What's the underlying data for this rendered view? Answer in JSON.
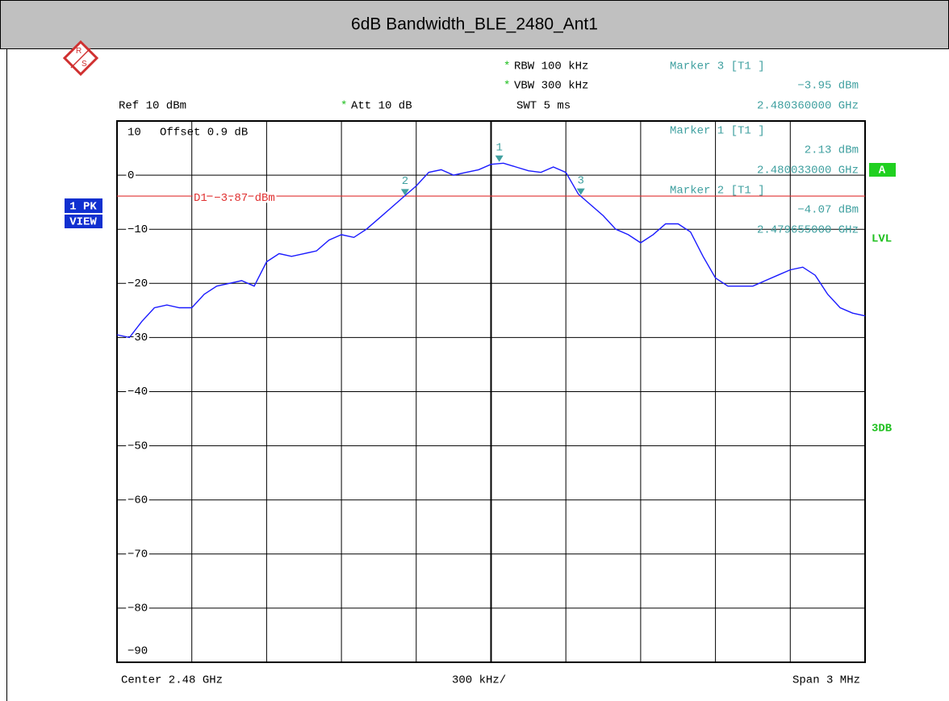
{
  "header": {
    "title": "6dB Bandwidth_BLE_2480_Ant1"
  },
  "settings": {
    "star": "*",
    "rbw": "RBW 100 kHz",
    "vbw": "VBW 300 kHz",
    "swt": "SWT 5 ms",
    "ref": "Ref 10 dBm",
    "att": "Att 10 dB"
  },
  "side": {
    "trace_mode": [
      "1 PK",
      "VIEW"
    ],
    "trace": "A",
    "lvl": "LVL",
    "db3": "3DB"
  },
  "footer": {
    "center": "Center 2.48 GHz",
    "per_div": "300 kHz/",
    "span": "Span 3 MHz"
  },
  "chart_data": {
    "type": "line",
    "offset_label": "Offset 0.9 dB",
    "xlim": [
      2.4785,
      2.4815
    ],
    "ylim": [
      -90,
      10
    ],
    "yticks": [
      10,
      0,
      {
        "value": -10,
        "label": "−10"
      },
      {
        "value": -20,
        "label": "−20"
      },
      {
        "value": -30,
        "label": "−30"
      },
      {
        "value": -40,
        "label": "−40"
      },
      {
        "value": -50,
        "label": "−50"
      },
      {
        "value": -60,
        "label": "−60"
      },
      {
        "value": -70,
        "label": "−70"
      },
      {
        "value": -80,
        "label": "−80"
      },
      {
        "value": -90,
        "label": "−90"
      }
    ],
    "grid": true,
    "x": [
      2.4785,
      2.47855,
      2.4786,
      2.47865,
      2.4787,
      2.47875,
      2.4788,
      2.47885,
      2.4789,
      2.47895,
      2.479,
      2.47905,
      2.4791,
      2.47915,
      2.4792,
      2.47925,
      2.4793,
      2.47935,
      2.4794,
      2.47945,
      2.4795,
      2.47955,
      2.4796,
      2.47965,
      2.4797,
      2.47975,
      2.4798,
      2.47985,
      2.4799,
      2.47995,
      2.48,
      2.48005,
      2.4801,
      2.48015,
      2.4802,
      2.48025,
      2.4803,
      2.48035,
      2.4804,
      2.48045,
      2.4805,
      2.48055,
      2.4806,
      2.48065,
      2.4807,
      2.48075,
      2.4808,
      2.48085,
      2.4809,
      2.48095,
      2.481,
      2.48105,
      2.4811,
      2.48115,
      2.4812,
      2.48125,
      2.4813,
      2.48135,
      2.4814,
      2.48145,
      2.4815
    ],
    "series": [
      {
        "color": "#1a1aff",
        "values": [
          -29.5,
          -30,
          -27,
          -24.5,
          -24,
          -24.5,
          -24.5,
          -22,
          -20.5,
          -20,
          -19.5,
          -20.5,
          -16,
          -14.5,
          -15,
          -14.5,
          -14,
          -12,
          -11,
          -11.5,
          -10,
          -8,
          -6,
          -4,
          -2,
          0.5,
          1,
          0,
          0.5,
          1,
          2,
          2.2,
          1.5,
          0.8,
          0.5,
          1.5,
          0.5,
          -3.5,
          -5.5,
          -7.5,
          -10,
          -11,
          -12.5,
          -11,
          -9,
          -9,
          -10.5,
          -15,
          -19,
          -20.5,
          -20.5,
          -20.5,
          -19.5,
          -18.5,
          -17.5,
          -17,
          -18.5,
          -22,
          -24.5,
          -25.5,
          -26
        ]
      }
    ],
    "display_line": {
      "label": "D1 −3.87 dBm",
      "value": -3.87,
      "color": "#e03030"
    },
    "marker_color": "#40a0a0",
    "markers": [
      {
        "id": "3",
        "name": "Marker 3 [T1 ]",
        "level_label": "−3.95 dBm",
        "freq_label": "2.480360000 GHz",
        "x": 2.48036,
        "y": -3.95
      },
      {
        "id": "1",
        "name": "Marker 1 [T1 ]",
        "level_label": "2.13 dBm",
        "freq_label": "2.480033000 GHz",
        "x": 2.480033,
        "y": 2.13
      },
      {
        "id": "2",
        "name": "Marker 2 [T1 ]",
        "level_label": "−4.07 dBm",
        "freq_label": "2.479655000 GHz",
        "x": 2.479655,
        "y": -4.07
      }
    ]
  }
}
